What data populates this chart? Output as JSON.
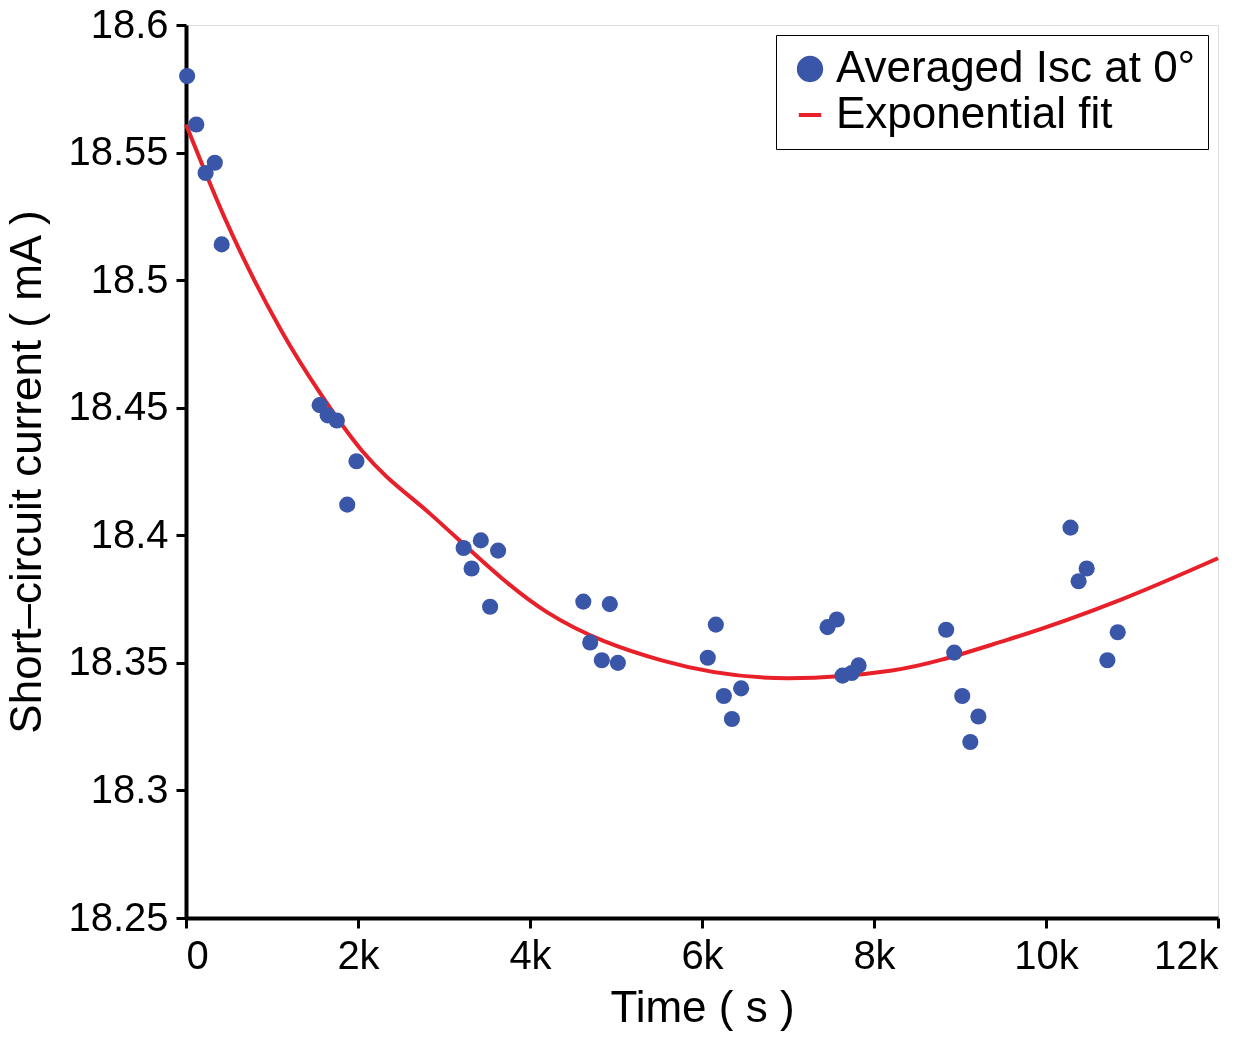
{
  "chart_data": {
    "type": "scatter",
    "xlabel": "Time ( s )",
    "ylabel": "Short–circuit current ( mA )",
    "xlim": [
      0,
      12000
    ],
    "ylim": [
      18.25,
      18.6
    ],
    "xticks": [
      0,
      {
        "value": 2000,
        "label": "2k"
      },
      {
        "value": 4000,
        "label": "4k"
      },
      {
        "value": 6000,
        "label": "6k"
      },
      {
        "value": 8000,
        "label": "8k"
      },
      {
        "value": 10000,
        "label": "10k"
      },
      {
        "value": 12000,
        "label": "12k"
      }
    ],
    "yticks": [
      18.25,
      18.3,
      18.35,
      18.4,
      18.45,
      18.5,
      18.55,
      18.6
    ],
    "legend": "top right",
    "grid": false,
    "series": [
      {
        "name": "Averaged Isc at 0°",
        "marker": "circle",
        "color": "#3a56a8",
        "x": [
          13,
          120,
          228,
          335,
          415,
          1554,
          1647,
          1754,
          1982,
          1875,
          3228,
          3428,
          3629,
          3321,
          3536,
          4620,
          4928,
          4700,
          4835,
          5022,
          6067,
          6161,
          6254,
          6455,
          6348,
          7460,
          7567,
          7634,
          7741,
          7821,
          8839,
          8933,
          9026,
          9214,
          9120,
          10285,
          10473,
          10379,
          10834,
          10714
        ],
        "values": [
          18.58,
          18.561,
          18.542,
          18.546,
          18.514,
          18.451,
          18.447,
          18.445,
          18.429,
          18.412,
          18.395,
          18.398,
          18.394,
          18.387,
          18.372,
          18.374,
          18.373,
          18.358,
          18.351,
          18.35,
          18.352,
          18.365,
          18.337,
          18.34,
          18.328,
          18.364,
          18.367,
          18.345,
          18.346,
          18.349,
          18.363,
          18.354,
          18.337,
          18.329,
          18.319,
          18.403,
          18.387,
          18.382,
          18.362,
          18.351
        ]
      },
      {
        "name": "Exponential fit",
        "type": "line",
        "color": "#e8202a",
        "line_style": "solid",
        "x": [
          0,
          442,
          1112,
          1554,
          2049,
          2853,
          4192,
          5531,
          7004,
          8209,
          9548,
          10888,
          12000
        ],
        "values": [
          18.561,
          18.525,
          18.48,
          18.456,
          18.433,
          18.408,
          18.37,
          18.351,
          18.344,
          18.347,
          18.359,
          18.375,
          18.391
        ]
      }
    ]
  }
}
